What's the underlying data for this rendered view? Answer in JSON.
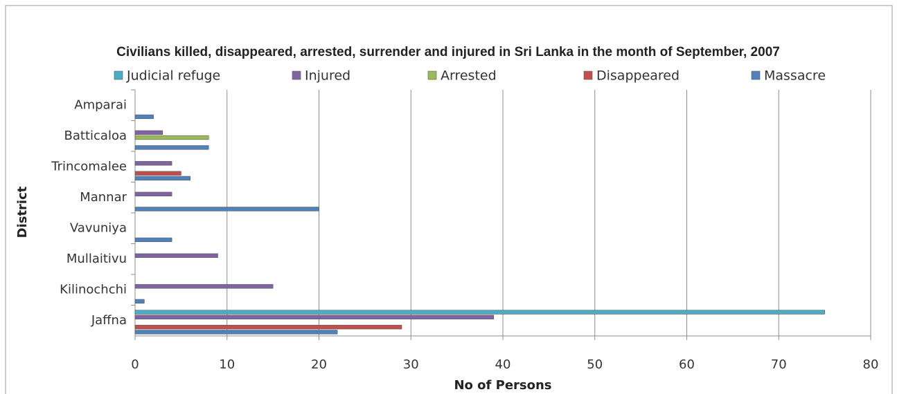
{
  "chart_data": {
    "type": "hbar",
    "title": "Civilians killed, disappeared, arrested, surrender and injured in  Sri Lanka in the month of September, 2007",
    "x_label": "No of Persons",
    "y_label": "District",
    "categories": [
      "Amparai",
      "Batticaloa",
      "Trincomalee",
      "Mannar",
      "Vavuniya",
      "Mullaitivu",
      "Kilinochchi",
      "Jaffna"
    ],
    "series": [
      {
        "name": "Judicial refuge",
        "color": "#4bacc6",
        "values": [
          null,
          null,
          null,
          null,
          null,
          null,
          null,
          75
        ]
      },
      {
        "name": "Injured",
        "color": "#8064a2",
        "values": [
          null,
          3,
          4,
          4,
          null,
          9,
          15,
          39
        ]
      },
      {
        "name": "Arrested",
        "color": "#9bbb59",
        "values": [
          null,
          8,
          null,
          null,
          null,
          null,
          null,
          null
        ]
      },
      {
        "name": "Disappeared",
        "color": "#c0504d",
        "values": [
          null,
          null,
          5,
          null,
          null,
          null,
          null,
          29
        ]
      },
      {
        "name": "Massacre",
        "color": "#4f81bd",
        "values": [
          2,
          8,
          6,
          20,
          4,
          null,
          1,
          22
        ]
      }
    ],
    "xlim": [
      0,
      80
    ],
    "xticks": [
      0,
      10,
      20,
      30,
      40,
      50,
      60,
      70,
      80
    ],
    "grid": true,
    "legend": "top"
  }
}
